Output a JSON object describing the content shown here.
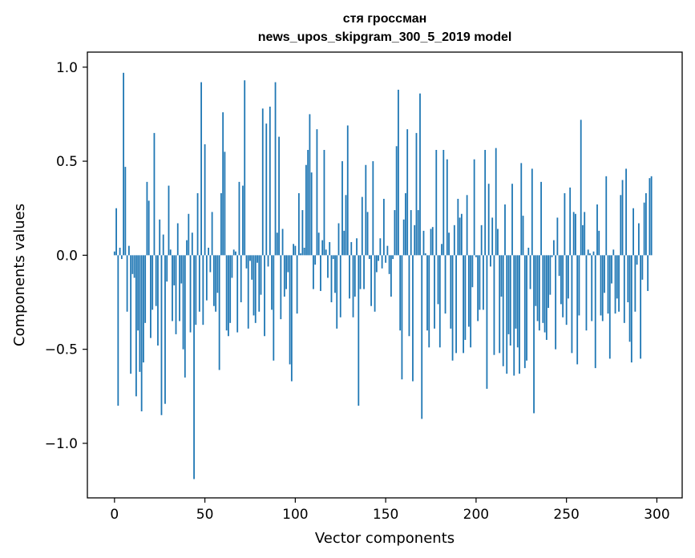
{
  "chart_data": {
    "type": "bar",
    "title_line1": "стя гроссман",
    "title_line2": "news_upos_skipgram_300_5_2019 model",
    "xlabel": "Vector components",
    "ylabel": "Components values",
    "xlim": [
      -15,
      314
    ],
    "ylim": [
      -1.29,
      1.08
    ],
    "xticks": [
      {
        "value": 0,
        "label": "0"
      },
      {
        "value": 50,
        "label": "50"
      },
      {
        "value": 100,
        "label": "100"
      },
      {
        "value": 150,
        "label": "150"
      },
      {
        "value": 200,
        "label": "200"
      },
      {
        "value": 250,
        "label": "250"
      },
      {
        "value": 300,
        "label": "300"
      }
    ],
    "yticks": [
      {
        "value": 1.0,
        "label": "1.0"
      },
      {
        "value": 0.5,
        "label": "0.5"
      },
      {
        "value": 0.0,
        "label": "0.0"
      },
      {
        "value": -0.5,
        "label": "−0.5"
      },
      {
        "value": -1.0,
        "label": "−1.0"
      }
    ],
    "bar_color": "#1f77b4",
    "values": [
      0.02,
      0.25,
      -0.8,
      0.04,
      -0.02,
      0.97,
      0.47,
      -0.3,
      0.05,
      -0.63,
      -0.1,
      -0.12,
      -0.75,
      -0.4,
      -0.62,
      -0.83,
      -0.57,
      -0.36,
      0.39,
      0.29,
      -0.44,
      -0.29,
      0.65,
      -0.27,
      -0.48,
      0.19,
      -0.85,
      0.11,
      -0.79,
      -0.14,
      0.37,
      0.03,
      -0.35,
      -0.16,
      -0.42,
      0.17,
      -0.35,
      -0.15,
      -0.5,
      -0.65,
      0.08,
      0.22,
      -0.41,
      0.12,
      -1.19,
      -0.37,
      0.33,
      -0.3,
      0.92,
      -0.37,
      0.59,
      -0.24,
      0.04,
      -0.09,
      0.23,
      -0.27,
      -0.3,
      -0.2,
      -0.61,
      0.33,
      0.76,
      0.55,
      -0.4,
      -0.43,
      -0.36,
      -0.12,
      0.03,
      0.02,
      -0.41,
      0.39,
      -0.25,
      0.37,
      0.93,
      -0.07,
      -0.39,
      -0.03,
      -0.13,
      -0.32,
      -0.36,
      -0.04,
      -0.3,
      -0.21,
      0.78,
      -0.43,
      0.7,
      -0.06,
      0.79,
      -0.29,
      -0.56,
      0.92,
      0.12,
      0.63,
      -0.34,
      0.14,
      -0.22,
      -0.18,
      -0.09,
      -0.58,
      -0.67,
      0.06,
      0.05,
      -0.31,
      0.33,
      0.01,
      0.24,
      0.04,
      0.48,
      0.56,
      0.75,
      0.44,
      -0.18,
      -0.05,
      0.67,
      0.12,
      -0.19,
      0.08,
      0.56,
      0.03,
      -0.12,
      0.07,
      -0.25,
      -0.02,
      -0.2,
      -0.39,
      0.17,
      -0.33,
      0.5,
      0.13,
      0.32,
      0.69,
      -0.23,
      0.07,
      -0.33,
      -0.22,
      0.09,
      -0.8,
      -0.18,
      0.31,
      -0.18,
      0.48,
      0.23,
      -0.02,
      -0.27,
      0.5,
      -0.3,
      -0.09,
      -0.03,
      0.09,
      -0.07,
      0.3,
      -0.04,
      0.05,
      -0.1,
      -0.22,
      -0.02,
      0.24,
      0.58,
      0.88,
      -0.4,
      -0.66,
      0.19,
      0.33,
      0.67,
      -0.43,
      0.24,
      -0.67,
      0.16,
      0.65,
      0.24,
      0.86,
      -0.87,
      0.13,
      0.01,
      -0.4,
      -0.49,
      0.14,
      0.15,
      -0.39,
      0.56,
      -0.26,
      -0.49,
      0.06,
      0.56,
      -0.31,
      0.51,
      0.12,
      -0.39,
      -0.56,
      0.16,
      -0.52,
      0.3,
      0.2,
      0.22,
      -0.52,
      -0.45,
      0.32,
      -0.38,
      -0.49,
      -0.17,
      0.51,
      -0.01,
      -0.35,
      -0.29,
      0.16,
      -0.29,
      0.56,
      -0.71,
      0.38,
      -0.06,
      0.2,
      -0.53,
      0.57,
      0.14,
      -0.52,
      -0.22,
      -0.59,
      0.27,
      -0.63,
      -0.42,
      -0.48,
      0.38,
      -0.64,
      -0.39,
      -0.49,
      -0.63,
      0.49,
      0.21,
      -0.6,
      -0.56,
      0.04,
      -0.18,
      0.46,
      -0.84,
      -0.27,
      -0.35,
      -0.4,
      0.39,
      -0.36,
      -0.41,
      -0.45,
      -0.28,
      -0.21,
      -0.01,
      0.08,
      -0.5,
      0.2,
      -0.11,
      -0.26,
      -0.33,
      0.33,
      -0.37,
      -0.23,
      0.36,
      -0.52,
      0.23,
      0.22,
      -0.58,
      -0.32,
      0.72,
      0.16,
      0.23,
      -0.4,
      0.03,
      0.01,
      -0.35,
      0.02,
      -0.6,
      0.27,
      0.13,
      -0.32,
      -0.35,
      -0.2,
      0.42,
      -0.31,
      -0.55,
      -0.15,
      0.03,
      -0.31,
      -0.23,
      -0.3,
      0.32,
      0.4,
      -0.36,
      0.46,
      -0.25,
      -0.46,
      -0.57,
      0.25,
      -0.3,
      -0.05,
      0.17,
      -0.55,
      -0.13,
      0.28,
      0.33,
      -0.19,
      0.41,
      0.42
    ]
  }
}
